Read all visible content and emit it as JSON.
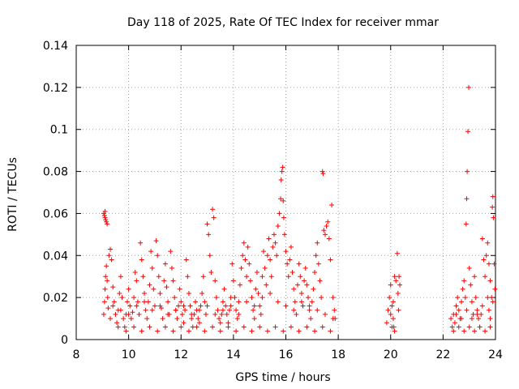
{
  "chart_data": {
    "type": "scatter",
    "title": "Day 118 of 2025, Rate Of TEC Index for receiver mmar",
    "xlabel": "GPS time / hours",
    "ylabel": "ROTI / TECUs",
    "xlim": [
      8,
      24
    ],
    "ylim": [
      0,
      0.14
    ],
    "xticks": [
      8,
      10,
      12,
      14,
      16,
      18,
      20,
      22,
      24
    ],
    "xtick_labels": [
      "8",
      "10",
      "12",
      "14",
      "16",
      "18",
      "20",
      "22",
      "24"
    ],
    "yticks": [
      0,
      0.02,
      0.04,
      0.06,
      0.08,
      0.1,
      0.12,
      0.14
    ],
    "ytick_labels": [
      "0",
      "0.02",
      "0.04",
      "0.06",
      "0.08",
      "0.1",
      "0.12",
      "0.14"
    ],
    "grid": true,
    "marker": "+",
    "color": "#ff0000",
    "points": [
      [
        9.05,
        0.06
      ],
      [
        9.08,
        0.059
      ],
      [
        9.1,
        0.058
      ],
      [
        9.12,
        0.057
      ],
      [
        9.15,
        0.056
      ],
      [
        9.18,
        0.055
      ],
      [
        9.1,
        0.061
      ],
      [
        9.05,
        0.012
      ],
      [
        9.08,
        0.018
      ],
      [
        9.1,
        0.024
      ],
      [
        9.12,
        0.03
      ],
      [
        9.15,
        0.035
      ],
      [
        9.18,
        0.028
      ],
      [
        9.2,
        0.02
      ],
      [
        9.22,
        0.015
      ],
      [
        9.25,
        0.04
      ],
      [
        9.3,
        0.043
      ],
      [
        9.35,
        0.038
      ],
      [
        9.4,
        0.025
      ],
      [
        9.45,
        0.018
      ],
      [
        9.5,
        0.012
      ],
      [
        9.55,
        0.008
      ],
      [
        9.6,
        0.014
      ],
      [
        9.65,
        0.022
      ],
      [
        9.7,
        0.03
      ],
      [
        9.75,
        0.02
      ],
      [
        9.8,
        0.01
      ],
      [
        9.85,
        0.006
      ],
      [
        9.9,
        0.012
      ],
      [
        9.95,
        0.018
      ],
      [
        10.0,
        0.024
      ],
      [
        10.05,
        0.016
      ],
      [
        10.1,
        0.01
      ],
      [
        10.15,
        0.013
      ],
      [
        10.2,
        0.02
      ],
      [
        10.25,
        0.032
      ],
      [
        10.3,
        0.028
      ],
      [
        10.35,
        0.018
      ],
      [
        10.4,
        0.012
      ],
      [
        10.45,
        0.046
      ],
      [
        10.5,
        0.038
      ],
      [
        10.55,
        0.03
      ],
      [
        10.6,
        0.022
      ],
      [
        10.65,
        0.014
      ],
      [
        10.7,
        0.01
      ],
      [
        10.75,
        0.018
      ],
      [
        10.8,
        0.026
      ],
      [
        10.85,
        0.042
      ],
      [
        10.9,
        0.034
      ],
      [
        10.95,
        0.024
      ],
      [
        11.0,
        0.016
      ],
      [
        11.05,
        0.047
      ],
      [
        11.1,
        0.04
      ],
      [
        11.15,
        0.03
      ],
      [
        11.2,
        0.022
      ],
      [
        11.25,
        0.015
      ],
      [
        11.3,
        0.01
      ],
      [
        11.35,
        0.028
      ],
      [
        11.4,
        0.036
      ],
      [
        11.45,
        0.025
      ],
      [
        11.5,
        0.018
      ],
      [
        11.55,
        0.012
      ],
      [
        11.6,
        0.042
      ],
      [
        11.65,
        0.034
      ],
      [
        11.7,
        0.028
      ],
      [
        11.75,
        0.02
      ],
      [
        11.8,
        0.014
      ],
      [
        11.85,
        0.01
      ],
      [
        11.9,
        0.016
      ],
      [
        11.95,
        0.024
      ],
      [
        12.0,
        0.018
      ],
      [
        12.05,
        0.012
      ],
      [
        12.1,
        0.008
      ],
      [
        12.15,
        0.014
      ],
      [
        12.2,
        0.038
      ],
      [
        12.25,
        0.03
      ],
      [
        12.3,
        0.022
      ],
      [
        12.35,
        0.016
      ],
      [
        12.4,
        0.01
      ],
      [
        12.45,
        0.006
      ],
      [
        12.5,
        0.012
      ],
      [
        12.55,
        0.018
      ],
      [
        12.6,
        0.014
      ],
      [
        12.65,
        0.01
      ],
      [
        12.7,
        0.008
      ],
      [
        12.75,
        0.016
      ],
      [
        12.8,
        0.022
      ],
      [
        12.85,
        0.03
      ],
      [
        12.9,
        0.018
      ],
      [
        12.95,
        0.012
      ],
      [
        13.0,
        0.055
      ],
      [
        13.05,
        0.05
      ],
      [
        13.1,
        0.04
      ],
      [
        13.15,
        0.032
      ],
      [
        13.2,
        0.062
      ],
      [
        13.25,
        0.058
      ],
      [
        13.3,
        0.028
      ],
      [
        13.35,
        0.02
      ],
      [
        13.4,
        0.014
      ],
      [
        13.45,
        0.01
      ],
      [
        13.5,
        0.008
      ],
      [
        13.55,
        0.012
      ],
      [
        13.6,
        0.018
      ],
      [
        13.65,
        0.024
      ],
      [
        13.7,
        0.016
      ],
      [
        13.75,
        0.012
      ],
      [
        13.8,
        0.008
      ],
      [
        13.85,
        0.014
      ],
      [
        13.9,
        0.02
      ],
      [
        13.95,
        0.036
      ],
      [
        14.0,
        0.028
      ],
      [
        14.05,
        0.02
      ],
      [
        14.1,
        0.014
      ],
      [
        14.15,
        0.01
      ],
      [
        14.2,
        0.018
      ],
      [
        14.25,
        0.026
      ],
      [
        14.3,
        0.034
      ],
      [
        14.35,
        0.04
      ],
      [
        14.4,
        0.046
      ],
      [
        14.45,
        0.038
      ],
      [
        14.5,
        0.03
      ],
      [
        14.55,
        0.044
      ],
      [
        14.6,
        0.036
      ],
      [
        14.65,
        0.028
      ],
      [
        14.7,
        0.02
      ],
      [
        14.75,
        0.014
      ],
      [
        14.8,
        0.01
      ],
      [
        14.85,
        0.024
      ],
      [
        14.9,
        0.032
      ],
      [
        14.95,
        0.022
      ],
      [
        15.0,
        0.016
      ],
      [
        15.05,
        0.012
      ],
      [
        15.1,
        0.03
      ],
      [
        15.15,
        0.042
      ],
      [
        15.2,
        0.034
      ],
      [
        15.25,
        0.026
      ],
      [
        15.3,
        0.04
      ],
      [
        15.35,
        0.048
      ],
      [
        15.4,
        0.038
      ],
      [
        15.45,
        0.03
      ],
      [
        15.5,
        0.044
      ],
      [
        15.55,
        0.05
      ],
      [
        15.6,
        0.046
      ],
      [
        15.65,
        0.04
      ],
      [
        15.7,
        0.054
      ],
      [
        15.75,
        0.06
      ],
      [
        15.8,
        0.067
      ],
      [
        15.82,
        0.076
      ],
      [
        15.85,
        0.08
      ],
      [
        15.88,
        0.082
      ],
      [
        15.9,
        0.066
      ],
      [
        15.92,
        0.058
      ],
      [
        15.95,
        0.05
      ],
      [
        16.0,
        0.042
      ],
      [
        16.05,
        0.036
      ],
      [
        16.1,
        0.03
      ],
      [
        16.15,
        0.038
      ],
      [
        16.2,
        0.044
      ],
      [
        16.25,
        0.032
      ],
      [
        16.3,
        0.024
      ],
      [
        16.35,
        0.018
      ],
      [
        16.4,
        0.012
      ],
      [
        16.45,
        0.026
      ],
      [
        16.5,
        0.036
      ],
      [
        16.55,
        0.03
      ],
      [
        16.6,
        0.022
      ],
      [
        16.65,
        0.016
      ],
      [
        16.7,
        0.028
      ],
      [
        16.75,
        0.034
      ],
      [
        16.8,
        0.026
      ],
      [
        16.85,
        0.02
      ],
      [
        16.9,
        0.014
      ],
      [
        16.95,
        0.01
      ],
      [
        17.0,
        0.018
      ],
      [
        17.05,
        0.024
      ],
      [
        17.1,
        0.032
      ],
      [
        17.15,
        0.04
      ],
      [
        17.2,
        0.046
      ],
      [
        17.25,
        0.036
      ],
      [
        17.3,
        0.028
      ],
      [
        17.35,
        0.02
      ],
      [
        17.4,
        0.08
      ],
      [
        17.42,
        0.079
      ],
      [
        17.45,
        0.052
      ],
      [
        17.5,
        0.05
      ],
      [
        17.55,
        0.054
      ],
      [
        17.6,
        0.056
      ],
      [
        17.65,
        0.048
      ],
      [
        17.7,
        0.038
      ],
      [
        17.75,
        0.064
      ],
      [
        17.8,
        0.02
      ],
      [
        17.85,
        0.014
      ],
      [
        17.88,
        0.01
      ],
      [
        9.3,
        0.01
      ],
      [
        9.6,
        0.006
      ],
      [
        9.9,
        0.004
      ],
      [
        10.2,
        0.006
      ],
      [
        10.5,
        0.004
      ],
      [
        10.8,
        0.006
      ],
      [
        11.1,
        0.004
      ],
      [
        11.4,
        0.006
      ],
      [
        11.7,
        0.004
      ],
      [
        12.0,
        0.006
      ],
      [
        12.3,
        0.004
      ],
      [
        12.6,
        0.006
      ],
      [
        12.9,
        0.004
      ],
      [
        13.2,
        0.006
      ],
      [
        13.5,
        0.004
      ],
      [
        13.8,
        0.006
      ],
      [
        14.1,
        0.004
      ],
      [
        14.4,
        0.006
      ],
      [
        14.7,
        0.004
      ],
      [
        15.0,
        0.006
      ],
      [
        15.3,
        0.004
      ],
      [
        15.6,
        0.006
      ],
      [
        15.9,
        0.004
      ],
      [
        16.2,
        0.006
      ],
      [
        16.5,
        0.004
      ],
      [
        16.8,
        0.006
      ],
      [
        17.1,
        0.004
      ],
      [
        17.4,
        0.006
      ],
      [
        17.7,
        0.004
      ],
      [
        9.4,
        0.016
      ],
      [
        9.7,
        0.014
      ],
      [
        10.0,
        0.012
      ],
      [
        10.3,
        0.016
      ],
      [
        10.6,
        0.018
      ],
      [
        10.9,
        0.014
      ],
      [
        11.2,
        0.016
      ],
      [
        11.5,
        0.012
      ],
      [
        11.8,
        0.014
      ],
      [
        12.1,
        0.016
      ],
      [
        12.4,
        0.012
      ],
      [
        12.7,
        0.014
      ],
      [
        13.0,
        0.016
      ],
      [
        13.3,
        0.012
      ],
      [
        13.6,
        0.014
      ],
      [
        13.9,
        0.016
      ],
      [
        14.2,
        0.012
      ],
      [
        14.5,
        0.018
      ],
      [
        14.8,
        0.016
      ],
      [
        15.1,
        0.02
      ],
      [
        15.4,
        0.022
      ],
      [
        15.7,
        0.018
      ],
      [
        16.0,
        0.016
      ],
      [
        16.3,
        0.014
      ],
      [
        16.6,
        0.018
      ],
      [
        16.9,
        0.016
      ],
      [
        17.2,
        0.014
      ],
      [
        17.5,
        0.012
      ],
      [
        17.8,
        0.01
      ],
      [
        19.85,
        0.008
      ],
      [
        19.9,
        0.014
      ],
      [
        19.95,
        0.02
      ],
      [
        20.0,
        0.026
      ],
      [
        20.05,
        0.016
      ],
      [
        20.1,
        0.01
      ],
      [
        20.12,
        0.006
      ],
      [
        20.15,
        0.03
      ],
      [
        20.2,
        0.028
      ],
      [
        20.25,
        0.041
      ],
      [
        20.28,
        0.022
      ],
      [
        20.3,
        0.014
      ],
      [
        20.32,
        0.03
      ],
      [
        20.35,
        0.026
      ],
      [
        20.0,
        0.012
      ],
      [
        20.05,
        0.006
      ],
      [
        20.1,
        0.018
      ],
      [
        20.15,
        0.004
      ],
      [
        22.3,
        0.01
      ],
      [
        22.35,
        0.006
      ],
      [
        22.4,
        0.012
      ],
      [
        22.45,
        0.008
      ],
      [
        22.5,
        0.016
      ],
      [
        22.55,
        0.02
      ],
      [
        22.6,
        0.014
      ],
      [
        22.65,
        0.01
      ],
      [
        22.7,
        0.018
      ],
      [
        22.75,
        0.024
      ],
      [
        22.8,
        0.028
      ],
      [
        22.85,
        0.02
      ],
      [
        22.88,
        0.055
      ],
      [
        22.9,
        0.067
      ],
      [
        22.92,
        0.08
      ],
      [
        22.95,
        0.099
      ],
      [
        22.98,
        0.12
      ],
      [
        23.0,
        0.034
      ],
      [
        23.05,
        0.026
      ],
      [
        23.1,
        0.018
      ],
      [
        23.15,
        0.012
      ],
      [
        23.2,
        0.03
      ],
      [
        23.25,
        0.02
      ],
      [
        23.3,
        0.014
      ],
      [
        23.35,
        0.01
      ],
      [
        23.4,
        0.006
      ],
      [
        23.45,
        0.012
      ],
      [
        23.5,
        0.048
      ],
      [
        23.55,
        0.038
      ],
      [
        23.6,
        0.03
      ],
      [
        23.65,
        0.04
      ],
      [
        23.7,
        0.046
      ],
      [
        23.75,
        0.036
      ],
      [
        23.8,
        0.028
      ],
      [
        23.85,
        0.02
      ],
      [
        23.88,
        0.063
      ],
      [
        23.9,
        0.068
      ],
      [
        23.92,
        0.058
      ],
      [
        23.95,
        0.036
      ],
      [
        23.98,
        0.024
      ],
      [
        23.75,
        0.014
      ],
      [
        23.8,
        0.006
      ],
      [
        22.4,
        0.004
      ],
      [
        22.6,
        0.006
      ],
      [
        22.8,
        0.004
      ],
      [
        23.0,
        0.006
      ],
      [
        23.2,
        0.004
      ],
      [
        23.4,
        0.006
      ],
      [
        23.6,
        0.004
      ],
      [
        23.8,
        0.01
      ],
      [
        22.5,
        0.012
      ],
      [
        22.7,
        0.01
      ],
      [
        22.9,
        0.014
      ],
      [
        23.1,
        0.01
      ],
      [
        23.3,
        0.012
      ],
      [
        23.5,
        0.016
      ],
      [
        23.7,
        0.02
      ],
      [
        23.9,
        0.018
      ]
    ]
  }
}
